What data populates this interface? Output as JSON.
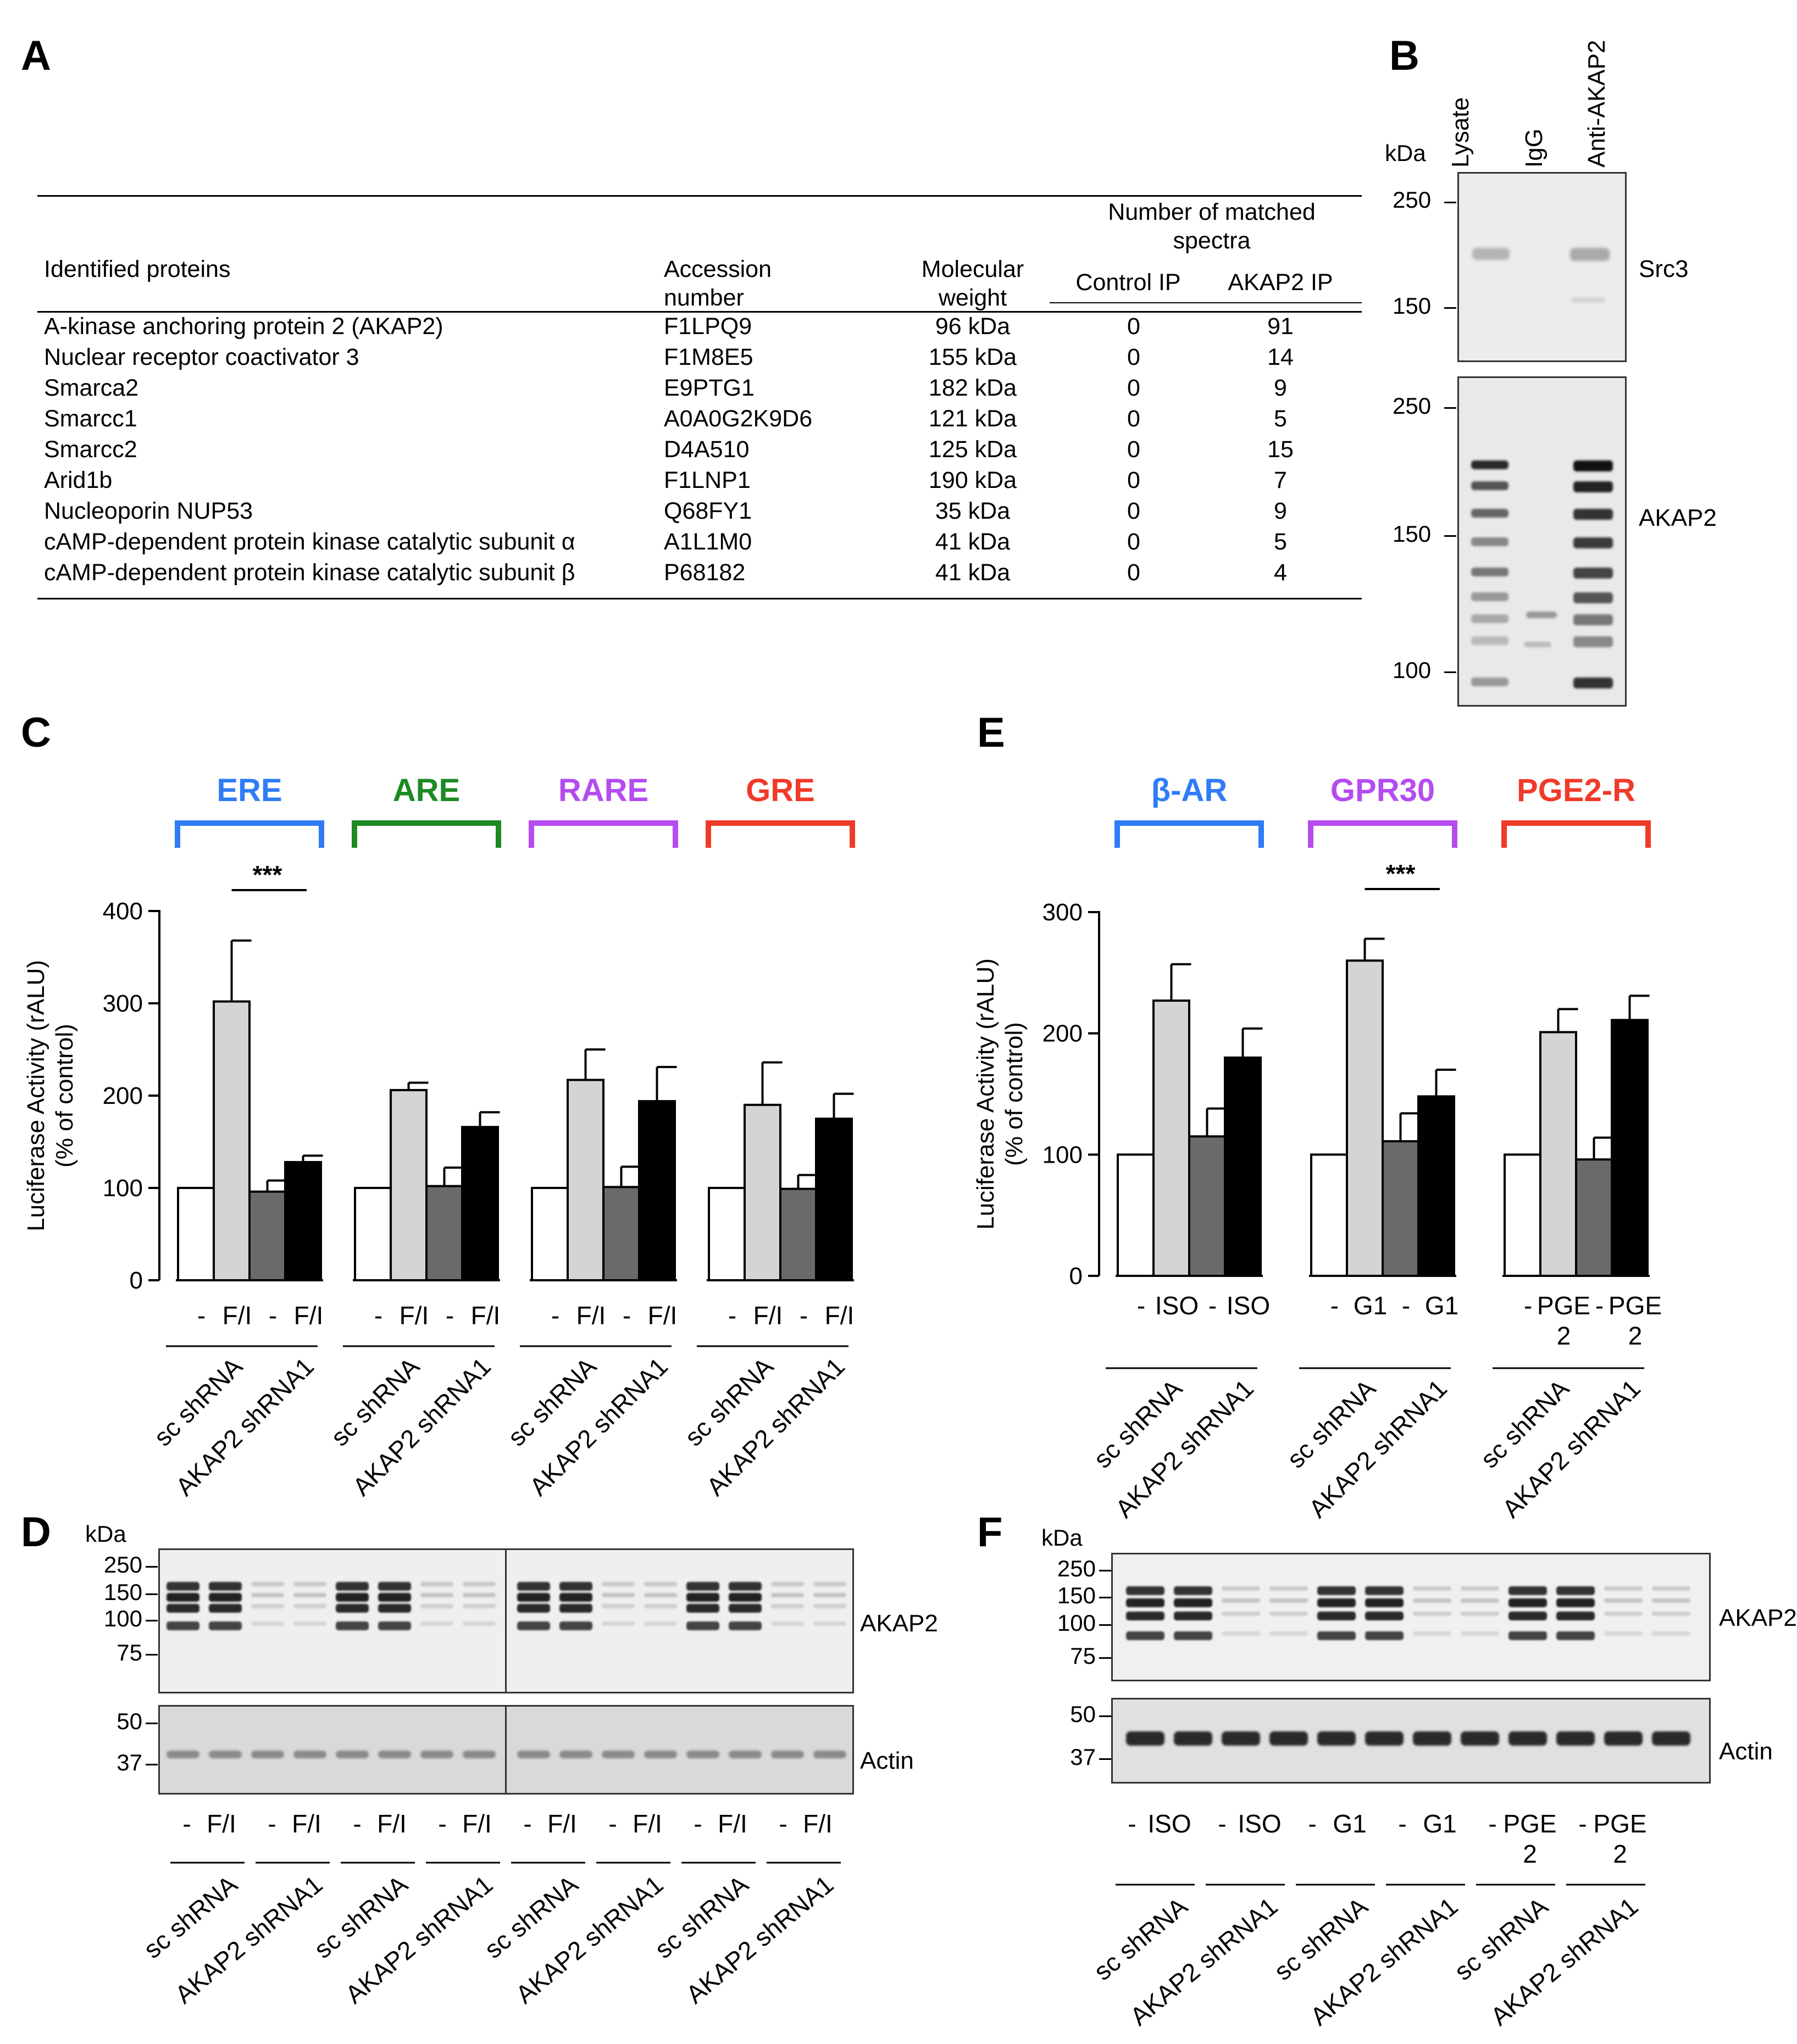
{
  "panel_A": {
    "letter": "A",
    "headers": {
      "proteins": "Identified proteins",
      "accession_1": "Accession",
      "accession_2": "number",
      "weight_1": "Molecular",
      "weight_2": "weight",
      "matched_1": "Number of matched",
      "matched_2": "spectra",
      "control": "Control IP",
      "akap2": "AKAP2 IP"
    },
    "rows": [
      {
        "protein": "A-kinase anchoring protein 2 (AKAP2)",
        "accession": "F1LPQ9",
        "weight": "96 kDa",
        "control": "0",
        "akap2": "91"
      },
      {
        "protein": "Nuclear receptor coactivator 3",
        "accession": "F1M8E5",
        "weight": "155 kDa",
        "control": "0",
        "akap2": "14"
      },
      {
        "protein": "Smarca2",
        "accession": "E9PTG1",
        "weight": "182 kDa",
        "control": "0",
        "akap2": "9"
      },
      {
        "protein": "Smarcc1",
        "accession": "A0A0G2K9D6",
        "weight": "121 kDa",
        "control": "0",
        "akap2": "5"
      },
      {
        "protein": "Smarcc2",
        "accession": "D4A510",
        "weight": "125 kDa",
        "control": "0",
        "akap2": "15"
      },
      {
        "protein": "Arid1b",
        "accession": "F1LNP1",
        "weight": "190 kDa",
        "control": "0",
        "akap2": "7"
      },
      {
        "protein": "Nucleoporin NUP53",
        "accession": "Q68FY1",
        "weight": "35 kDa",
        "control": "0",
        "akap2": "9"
      },
      {
        "protein": "cAMP-dependent protein kinase catalytic subunit α",
        "accession": "A1L1M0",
        "weight": "41 kDa",
        "control": "0",
        "akap2": "5"
      },
      {
        "protein": "cAMP-dependent protein kinase catalytic subunit β",
        "accession": "P68182",
        "weight": "41 kDa",
        "control": "0",
        "akap2": "4"
      }
    ]
  },
  "panel_B": {
    "letter": "B",
    "kda": "kDa",
    "lanes": [
      "Lysate",
      "IgG",
      "Anti-AKAP2"
    ],
    "src3_label": "Src3",
    "akap2_label": "AKAP2",
    "src3_markers": [
      "250",
      "150"
    ],
    "akap2_markers": [
      "250",
      "150",
      "100"
    ]
  },
  "chart_data": [
    {
      "type": "bar",
      "panel": "C",
      "ylabel_1": "Luciferase Activity (rALU)",
      "ylabel_2": "(% of control)",
      "ylim": [
        0,
        400
      ],
      "yticks": [
        "0",
        "100",
        "200",
        "300",
        "400"
      ],
      "significance": "***",
      "colors": {
        "blue": "#2f7cf6",
        "green": "#1e8a24",
        "purple": "#b44cf0",
        "red": "#f03a2a",
        "empty": "#ffffff",
        "light": "#d4d4d4",
        "dark": "#6a6a6a",
        "black": "#000000"
      },
      "groups": [
        {
          "name": "ERE",
          "color": "#2f7cf6",
          "x_labels": [
            "-",
            "F/I",
            "-",
            "F/I"
          ],
          "shrna": [
            "sc shRNA",
            "AKAP2 shRNA1"
          ],
          "values": [
            100,
            302,
            96,
            128
          ],
          "errors": [
            0,
            66,
            12,
            7
          ]
        },
        {
          "name": "ARE",
          "color": "#1e8a24",
          "x_labels": [
            "-",
            "F/I",
            "-",
            "F/I"
          ],
          "shrna": [
            "sc shRNA",
            "AKAP2 shRNA1"
          ],
          "values": [
            100,
            206,
            102,
            166
          ],
          "errors": [
            0,
            8,
            20,
            16
          ]
        },
        {
          "name": "RARE",
          "color": "#b44cf0",
          "x_labels": [
            "-",
            "F/I",
            "-",
            "F/I"
          ],
          "shrna": [
            "sc shRNA",
            "AKAP2 shRNA1"
          ],
          "values": [
            100,
            217,
            101,
            194
          ],
          "errors": [
            0,
            33,
            22,
            37
          ]
        },
        {
          "name": "GRE",
          "color": "#f03a2a",
          "x_labels": [
            "-",
            "F/I",
            "-",
            "F/I"
          ],
          "shrna": [
            "sc shRNA",
            "AKAP2 shRNA1"
          ],
          "values": [
            100,
            190,
            99,
            175
          ],
          "errors": [
            0,
            46,
            15,
            27
          ]
        }
      ]
    },
    {
      "type": "bar",
      "panel": "E",
      "ylabel_1": "Luciferase Activity (rALU)",
      "ylabel_2": "(% of control)",
      "ylim": [
        0,
        300
      ],
      "yticks": [
        "0",
        "100",
        "200",
        "300"
      ],
      "significance": "***",
      "groups": [
        {
          "name": "β-AR",
          "color": "#2f7cf6",
          "x_labels": [
            "-",
            "ISO",
            "-",
            "ISO"
          ],
          "shrna": [
            "sc shRNA",
            "AKAP2 shRNA1"
          ],
          "values": [
            100,
            227,
            115,
            180
          ],
          "errors": [
            0,
            30,
            23,
            24
          ]
        },
        {
          "name": "GPR30",
          "color": "#b44cf0",
          "x_labels": [
            "-",
            "G1",
            "-",
            "G1"
          ],
          "shrna": [
            "sc shRNA",
            "AKAP2 shRNA1"
          ],
          "values": [
            100,
            260,
            111,
            148
          ],
          "errors": [
            0,
            18,
            23,
            22
          ]
        },
        {
          "name": "PGE2-R",
          "color": "#f03a2a",
          "x_labels": [
            "-",
            "PGE 2",
            "-",
            "PGE 2"
          ],
          "shrna": [
            "sc shRNA",
            "AKAP2 shRNA1"
          ],
          "values": [
            100,
            201,
            96,
            211
          ],
          "errors": [
            0,
            19,
            18,
            20
          ]
        }
      ]
    }
  ],
  "panel_C": {
    "letter": "C"
  },
  "panel_E": {
    "letter": "E"
  },
  "panel_D": {
    "letter": "D",
    "kda": "kDa",
    "top_markers": [
      "250",
      "150",
      "100",
      "75"
    ],
    "bottom_markers": [
      "50",
      "37"
    ],
    "top_label": "AKAP2",
    "bottom_label": "Actin",
    "lanes": [
      "-",
      "F/I",
      "-",
      "F/I",
      "-",
      "F/I",
      "-",
      "F/I",
      "-",
      "F/I",
      "-",
      "F/I",
      "-",
      "F/I",
      "-",
      "F/I"
    ],
    "shrna": [
      "sc shRNA",
      "AKAP2 shRNA1",
      "sc shRNA",
      "AKAP2 shRNA1",
      "sc shRNA",
      "AKAP2 shRNA1",
      "sc shRNA",
      "AKAP2 shRNA1"
    ]
  },
  "panel_F": {
    "letter": "F",
    "kda": "kDa",
    "top_markers": [
      "250",
      "150",
      "100",
      "75"
    ],
    "bottom_markers": [
      "50",
      "37"
    ],
    "top_label": "AKAP2",
    "bottom_label": "Actin",
    "lanes": [
      "-",
      "ISO",
      "-",
      "ISO",
      "-",
      "G1",
      "-",
      "G1",
      "-",
      "PGE",
      "-",
      "PGE"
    ],
    "lane_sub": "2",
    "shrna": [
      "sc shRNA",
      "AKAP2 shRNA1",
      "sc shRNA",
      "AKAP2 shRNA1",
      "sc shRNA",
      "AKAP2 shRNA1"
    ]
  }
}
